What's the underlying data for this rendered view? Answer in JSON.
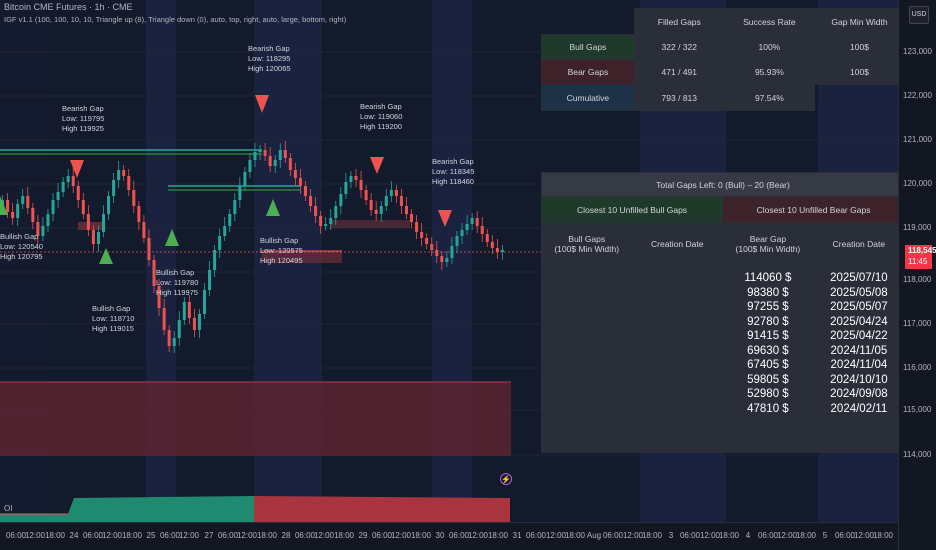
{
  "header": {
    "line1": "Bitcoin CME Futures · 1h · CME",
    "line2": "IGF v1.1 (100, 100, 10, 10, Triangle up (8), Triangle down (0), auto, top, right, auto, large, bottom, right)"
  },
  "price_axis": {
    "currency_button": "USD",
    "ticks": [
      "123,000",
      "122,000",
      "121,000",
      "120,000",
      "119,000",
      "118,000",
      "117,000",
      "116,000",
      "115,000",
      "114,000"
    ],
    "last_price": "118,545",
    "countdown": "11:45"
  },
  "time_axis": {
    "ticks": [
      "06:00",
      "12:00",
      "18:00",
      "24",
      "06:00",
      "12:00",
      "18:00",
      "25",
      "06:00",
      "12:00",
      "27",
      "06:00",
      "12:00",
      "18:00",
      "28",
      "06:00",
      "12:00",
      "18:00",
      "29",
      "06:00",
      "12:00",
      "18:00",
      "30",
      "06:00",
      "12:00",
      "18:00",
      "31",
      "06:00",
      "12:00",
      "18:00",
      "Aug",
      "06:00",
      "12:00",
      "18:00",
      "3",
      "06:00",
      "12:00",
      "18:00",
      "4",
      "06:00",
      "12:00",
      "18:00",
      "5",
      "06:00",
      "12:00",
      "18:00"
    ]
  },
  "oscillator": {
    "label": "OI"
  },
  "annotations": [
    {
      "type": "Bullish Gap",
      "low": "Low: 120540",
      "high": "High 120795"
    },
    {
      "type": "Bearish Gap",
      "low": "Low: 119795",
      "high": "High 119925"
    },
    {
      "type": "Bullish Gap",
      "low": "Low: 118710",
      "high": "High 119015"
    },
    {
      "type": "Bullish Gap",
      "low": "Low: 119780",
      "high": "High 119975"
    },
    {
      "type": "Bearish Gap",
      "low": "Low: 118295",
      "high": "High 120065"
    },
    {
      "type": "Bullish Gap",
      "low": "Low: 120575",
      "high": "High 120495"
    },
    {
      "type": "Bearish Gap",
      "low": "Low: 119060",
      "high": "High 119200"
    },
    {
      "type": "Bearish Gap",
      "low": "Low: 118345",
      "high": "High 118460"
    }
  ],
  "stats_table": {
    "headers": [
      "Filled Gaps",
      "Success Rate",
      "Gap Min Width"
    ],
    "rows": [
      {
        "label": "Bull Gaps",
        "filled": "322 / 322",
        "rate": "100%",
        "width": "100$"
      },
      {
        "label": "Bear Gaps",
        "filled": "471 / 491",
        "rate": "95.93%",
        "width": "100$"
      },
      {
        "label": "Cumulative",
        "filled": "793 / 813",
        "rate": "97.54%",
        "width": ""
      }
    ]
  },
  "gaps_table": {
    "title": "Total Gaps Left:  0 (Bull)  –  20 (Bear)",
    "bull_title": "Closest 10 Unfilled Bull Gaps",
    "bear_title": "Closest 10 Unfilled Bear Gaps",
    "col1": "Bull Gaps\n(100$ Min Width)",
    "col2": "Creation Date",
    "col3": "Bear Gap\n(100$ Min Width)",
    "col4": "Creation Date",
    "bear_gaps": [
      "114060 $",
      "98380 $",
      "97255 $",
      "92780 $",
      "91415 $",
      "69630 $",
      "67405 $",
      "59805 $",
      "52980 $",
      "47810 $"
    ],
    "bear_dates": [
      "2025/07/10",
      "2025/05/08",
      "2025/05/07",
      "2025/04/24",
      "2025/04/22",
      "2024/11/05",
      "2024/11/04",
      "2024/10/10",
      "2024/09/08",
      "2024/02/11"
    ]
  },
  "colors": {
    "bull": "#26a69a",
    "bear": "#ef5350",
    "bull_cell": "#1f3a2a",
    "bear_cell": "#3d2329",
    "cum_cell": "#1e3247"
  }
}
